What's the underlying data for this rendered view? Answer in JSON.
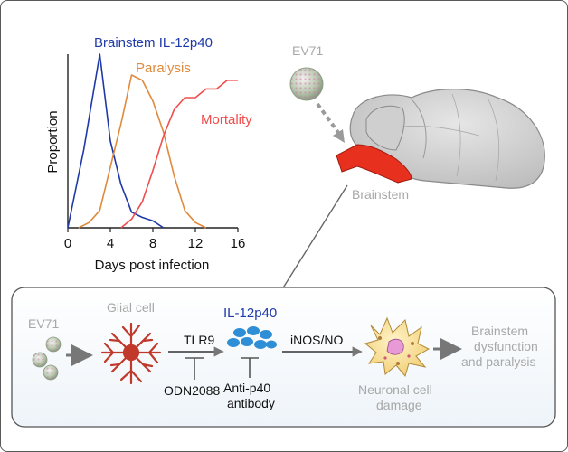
{
  "chart_data": {
    "type": "line",
    "xlabel": "Days post infection",
    "ylabel": "Proportion",
    "xlim": [
      0,
      16
    ],
    "ylim": [
      0,
      1
    ],
    "xticks": [
      "0",
      "4",
      "8",
      "12",
      "16"
    ],
    "grid": false,
    "series": [
      {
        "name": "Brainstem IL-12p40",
        "color": "#1f3aa8",
        "points": [
          [
            0,
            0.0
          ],
          [
            1.5,
            0.45
          ],
          [
            3,
            1.0
          ],
          [
            4,
            0.5
          ],
          [
            5,
            0.25
          ],
          [
            6,
            0.09
          ],
          [
            7,
            0.06
          ],
          [
            8,
            0.04
          ],
          [
            9,
            0.0
          ]
        ]
      },
      {
        "name": "Paralysis",
        "color": "#e08a3c",
        "points": [
          [
            1,
            0.0
          ],
          [
            2,
            0.03
          ],
          [
            3,
            0.1
          ],
          [
            4,
            0.35
          ],
          [
            5,
            0.6
          ],
          [
            6,
            0.88
          ],
          [
            7,
            0.85
          ],
          [
            8,
            0.73
          ],
          [
            9,
            0.55
          ],
          [
            10,
            0.3
          ],
          [
            11,
            0.1
          ],
          [
            12,
            0.03
          ],
          [
            13,
            0.0
          ]
        ]
      },
      {
        "name": "Mortality",
        "color": "#f04d4d",
        "points": [
          [
            5,
            0.0
          ],
          [
            6,
            0.05
          ],
          [
            7,
            0.15
          ],
          [
            8,
            0.33
          ],
          [
            9,
            0.53
          ],
          [
            10,
            0.68
          ],
          [
            11,
            0.75
          ],
          [
            12,
            0.75
          ],
          [
            13,
            0.8
          ],
          [
            14,
            0.8
          ],
          [
            15,
            0.85
          ],
          [
            16,
            0.85
          ]
        ]
      }
    ]
  },
  "top": {
    "ev71_label": "EV71",
    "brainstem_label": "Brainstem"
  },
  "pathway": {
    "ev71_label": "EV71",
    "glial_label": "Glial cell",
    "tlr9_label": "TLR9",
    "odn_label": "ODN2088",
    "il12_label": "IL-12p40",
    "antibody_line1": "Anti-p40",
    "antibody_line2": "antibody",
    "inos_label": "iNOS/NO",
    "neuronal_line1": "Neuronal cell",
    "neuronal_line2": "damage",
    "outcome_line1": "Brainstem",
    "outcome_line2": "dysfunction",
    "outcome_line3": "and paralysis"
  },
  "colors": {
    "il12": "#1f3aa8",
    "paralysis": "#e08a3c",
    "mortality": "#f04d4d",
    "brainstem": "#e8301e",
    "grey_text": "#a8a8a8",
    "glial": "#c0392b",
    "blue_cell": "#2f8fd6"
  }
}
